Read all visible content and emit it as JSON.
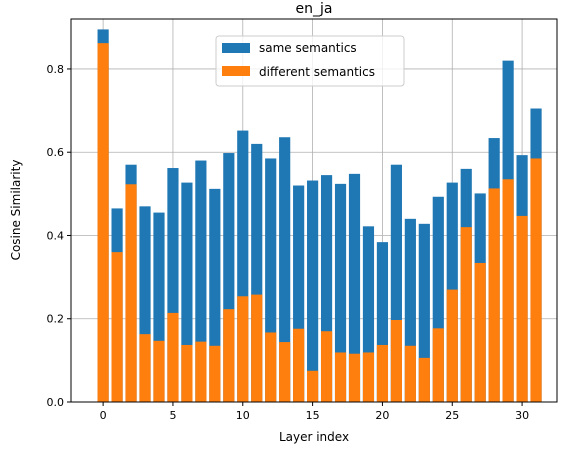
{
  "chart_data": {
    "type": "bar",
    "title": "en_ja",
    "xlabel": "Layer index",
    "ylabel": "Cosine Similarity",
    "x": [
      0,
      1,
      2,
      3,
      4,
      5,
      6,
      7,
      8,
      9,
      10,
      11,
      12,
      13,
      14,
      15,
      16,
      17,
      18,
      19,
      20,
      21,
      22,
      23,
      24,
      25,
      26,
      27,
      28,
      29,
      30,
      31
    ],
    "xticks": [
      0,
      5,
      10,
      15,
      20,
      25,
      30
    ],
    "yticks": [
      0.0,
      0.2,
      0.4,
      0.6,
      0.8
    ],
    "ytick_labels": [
      "0.0",
      "0.2",
      "0.4",
      "0.6",
      "0.8"
    ],
    "xlim": [
      -2.3,
      32.5
    ],
    "ylim": [
      0,
      0.92
    ],
    "grid": true,
    "legend_position": "top-center",
    "series": [
      {
        "name": "same semantics",
        "color": "#1f77b4",
        "values": [
          0.895,
          0.465,
          0.57,
          0.47,
          0.455,
          0.562,
          0.527,
          0.58,
          0.512,
          0.598,
          0.652,
          0.62,
          0.585,
          0.636,
          0.52,
          0.532,
          0.545,
          0.524,
          0.548,
          0.422,
          0.384,
          0.57,
          0.44,
          0.428,
          0.493,
          0.527,
          0.56,
          0.501,
          0.634,
          0.82,
          0.593,
          0.705
        ]
      },
      {
        "name": "different semantics",
        "color": "#ff7f0e",
        "values": [
          0.862,
          0.36,
          0.523,
          0.163,
          0.147,
          0.214,
          0.137,
          0.145,
          0.135,
          0.223,
          0.254,
          0.258,
          0.167,
          0.144,
          0.176,
          0.075,
          0.17,
          0.119,
          0.116,
          0.119,
          0.137,
          0.197,
          0.135,
          0.106,
          0.177,
          0.27,
          0.42,
          0.334,
          0.513,
          0.535,
          0.447,
          0.585
        ]
      }
    ]
  }
}
